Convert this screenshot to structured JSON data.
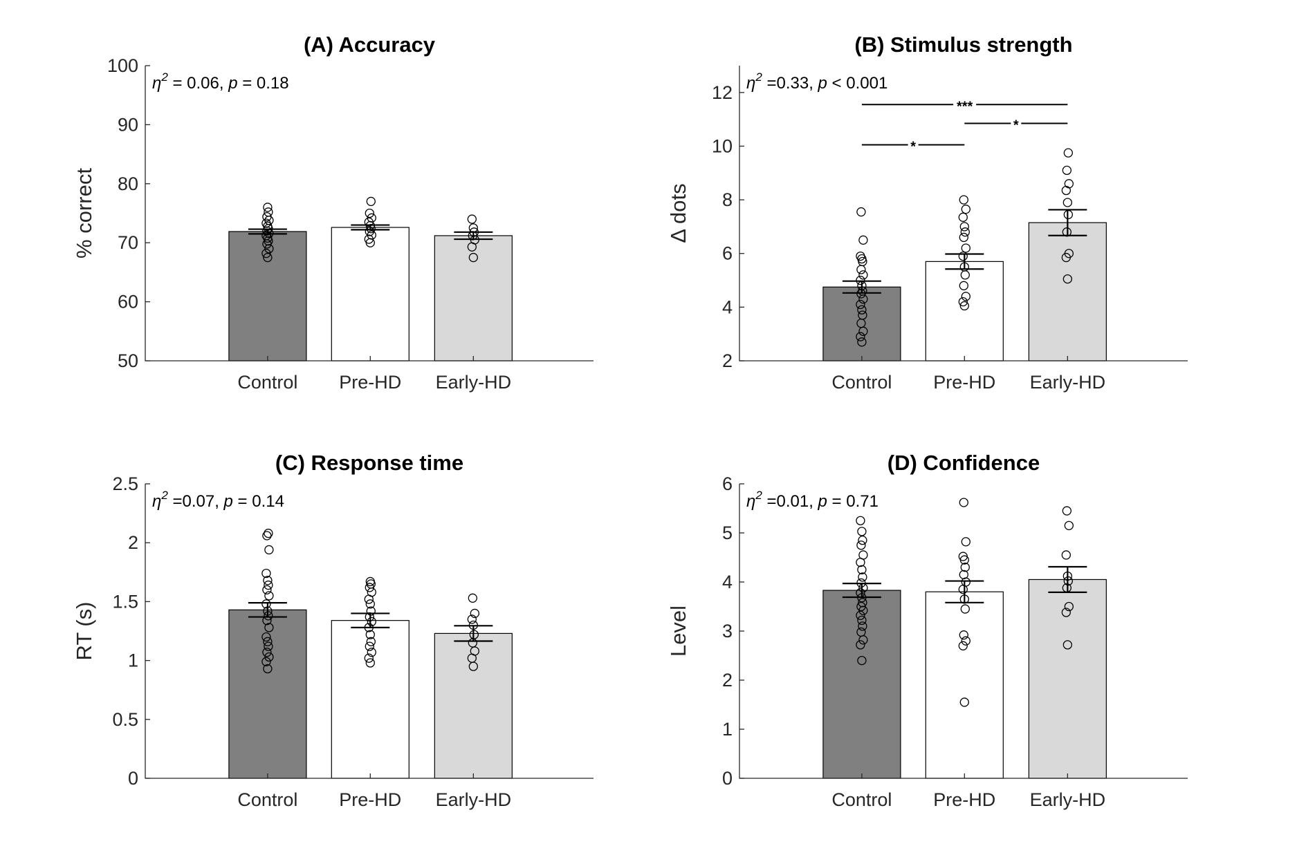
{
  "chart_data": [
    {
      "type": "bar",
      "title": "(A) Accuracy",
      "ylabel": "% correct",
      "ylim": [
        50,
        100
      ],
      "yticks": [
        "50",
        "60",
        "70",
        "80",
        "90",
        "100"
      ],
      "categories": [
        "Control",
        "Pre-HD",
        "Early-HD"
      ],
      "colors": [
        "#808080",
        "#ffffff",
        "#d9d9d9"
      ],
      "values": [
        71.9,
        72.6,
        71.2
      ],
      "errors": [
        0.4,
        0.4,
        0.6
      ],
      "points": [
        [
          67.5,
          68.2,
          69.0,
          69.8,
          70.3,
          70.8,
          71.2,
          71.6,
          72.0,
          72.4,
          72.8,
          73.3,
          73.8,
          74.4,
          75.2,
          76.0
        ],
        [
          70.0,
          70.6,
          71.3,
          71.9,
          72.4,
          72.9,
          73.5,
          74.2,
          75.0,
          77.0
        ],
        [
          67.5,
          69.3,
          70.5,
          71.2,
          71.8,
          72.5,
          74.0
        ]
      ],
      "stat": {
        "prefix": "η",
        "sup": "2",
        "eq": " = 0.06, ",
        "p": "p",
        "rest": " = 0.18"
      },
      "comparisons": []
    },
    {
      "type": "bar",
      "title": "(B) Stimulus strength",
      "ylabel": "Δ dots",
      "ylim": [
        2,
        13
      ],
      "yticks": [
        "2",
        "4",
        "6",
        "8",
        "10",
        "12"
      ],
      "categories": [
        "Control",
        "Pre-HD",
        "Early-HD"
      ],
      "colors": [
        "#808080",
        "#ffffff",
        "#d9d9d9"
      ],
      "values": [
        4.75,
        5.7,
        7.15
      ],
      "errors": [
        0.22,
        0.28,
        0.48
      ],
      "points": [
        [
          2.7,
          2.9,
          3.1,
          3.4,
          3.7,
          3.9,
          4.1,
          4.3,
          4.5,
          4.6,
          4.8,
          5.0,
          5.2,
          5.4,
          5.7,
          5.8,
          5.9,
          6.5,
          7.55
        ],
        [
          4.05,
          4.2,
          4.4,
          4.8,
          5.2,
          5.5,
          5.9,
          6.2,
          6.6,
          6.8,
          7.0,
          7.35,
          7.65,
          8.0
        ],
        [
          5.05,
          5.85,
          6.0,
          6.8,
          7.45,
          7.9,
          8.35,
          8.6,
          9.1,
          9.75
        ]
      ],
      "stat": {
        "prefix": "η",
        "sup": "2",
        "eq": " =0.33, ",
        "p": "p",
        "rest": " < 0.001"
      },
      "comparisons": [
        {
          "from": 0,
          "to": 2,
          "y": 11.55,
          "label": "***"
        },
        {
          "from": 1,
          "to": 2,
          "y": 10.85,
          "label": "*"
        },
        {
          "from": 0,
          "to": 1,
          "y": 10.05,
          "label": "*"
        }
      ]
    },
    {
      "type": "bar",
      "title": "(C) Response time",
      "ylabel": "RT (s)",
      "ylim": [
        0,
        2.5
      ],
      "yticks": [
        "0",
        "0.5",
        "1",
        "1.5",
        "2",
        "2.5"
      ],
      "categories": [
        "Control",
        "Pre-HD",
        "Early-HD"
      ],
      "colors": [
        "#808080",
        "#ffffff",
        "#d9d9d9"
      ],
      "values": [
        1.43,
        1.34,
        1.23
      ],
      "errors": [
        0.06,
        0.06,
        0.065
      ],
      "points": [
        [
          0.93,
          0.99,
          1.03,
          1.07,
          1.12,
          1.16,
          1.2,
          1.28,
          1.34,
          1.38,
          1.42,
          1.48,
          1.55,
          1.6,
          1.64,
          1.68,
          1.74,
          1.94,
          2.06,
          2.08
        ],
        [
          0.98,
          1.02,
          1.07,
          1.12,
          1.16,
          1.22,
          1.28,
          1.33,
          1.37,
          1.42,
          1.48,
          1.52,
          1.58,
          1.62,
          1.65,
          1.67
        ],
        [
          0.95,
          1.02,
          1.08,
          1.15,
          1.22,
          1.3,
          1.35,
          1.4,
          1.53
        ]
      ],
      "stat": {
        "prefix": "η",
        "sup": "2",
        "eq": " =0.07, ",
        "p": "p",
        "rest": " = 0.14"
      },
      "comparisons": []
    },
    {
      "type": "bar",
      "title": "(D) Confidence",
      "ylabel": "Level",
      "ylim": [
        0,
        6
      ],
      "yticks": [
        "0",
        "1",
        "2",
        "3",
        "4",
        "5",
        "6"
      ],
      "categories": [
        "Control",
        "Pre-HD",
        "Early-HD"
      ],
      "colors": [
        "#808080",
        "#ffffff",
        "#d9d9d9"
      ],
      "values": [
        3.83,
        3.8,
        4.05
      ],
      "errors": [
        0.14,
        0.22,
        0.26
      ],
      "points": [
        [
          2.4,
          2.72,
          2.82,
          2.98,
          3.1,
          3.22,
          3.32,
          3.42,
          3.5,
          3.58,
          3.68,
          3.78,
          3.88,
          3.98,
          4.1,
          4.25,
          4.4,
          4.55,
          4.75,
          4.85,
          5.03,
          5.25
        ],
        [
          1.55,
          2.7,
          2.8,
          2.92,
          3.45,
          3.65,
          3.85,
          4.0,
          4.15,
          4.3,
          4.45,
          4.52,
          4.82,
          5.62
        ],
        [
          2.72,
          3.38,
          3.5,
          3.88,
          4.02,
          4.12,
          4.55,
          5.15,
          5.45
        ]
      ],
      "stat": {
        "prefix": "η",
        "sup": "2",
        "eq": " =0.01, ",
        "p": "p",
        "rest": " = 0.71"
      },
      "comparisons": []
    }
  ]
}
